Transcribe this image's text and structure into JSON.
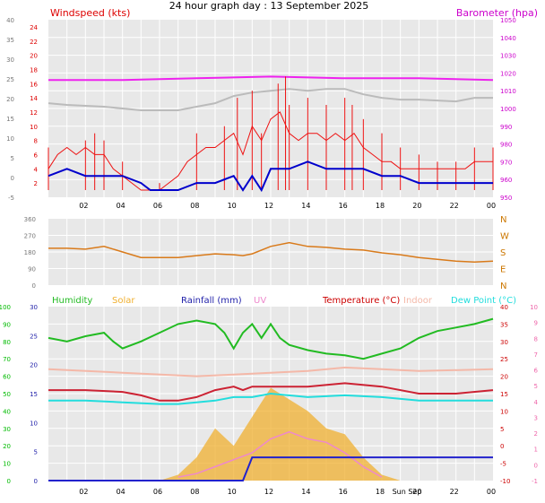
{
  "title": "24 hour graph day : 13 September 2025",
  "colors": {
    "bg_panel": "#e8e8e8",
    "grid": "#ffffff",
    "wind": "#ee1111",
    "gust_base": "#0000cc",
    "baro": "#ee22ee",
    "baro_avg": "#bbbbbb",
    "dir": "#d97a1a",
    "humidity": "#22bb22",
    "solar": "#f0b030",
    "rain": "#2222cc",
    "uv": "#ee88cc",
    "temp": "#cc2233",
    "indoor": "#f4b8a8",
    "dew": "#22dddd",
    "left_axis_1": "#dd0000",
    "right_axis_1": "#cc00cc",
    "axis_green": "#00bb00",
    "axis_blue": "#2222aa",
    "axis_red": "#cc0000",
    "axis_pink": "#ee66aa"
  },
  "time_ticks": [
    "02",
    "04",
    "06",
    "08",
    "10",
    "12",
    "14",
    "16",
    "18",
    "20",
    "22",
    "00"
  ],
  "panel3_time_ticks": [
    "02",
    "04",
    "06",
    "08",
    "10",
    "12",
    "14",
    "16",
    "18",
    "Sun Sep",
    "20",
    "22",
    "00"
  ],
  "chart_data": [
    {
      "type": "line",
      "title": "Windspeed (kts)",
      "right_title": "Barometer (hpa)",
      "x_unit": "hour",
      "xlim": [
        0,
        24
      ],
      "left_axis_ticks": [
        -5,
        0,
        5,
        10,
        15,
        20,
        25,
        30,
        35,
        40
      ],
      "inner_axis_ticks": [
        0,
        2,
        4,
        6,
        8,
        10,
        12,
        14,
        16,
        18,
        20,
        22,
        24
      ],
      "right_axis_ticks": [
        950,
        960,
        970,
        980,
        990,
        1000,
        1010,
        1020,
        1030,
        1040,
        1050
      ],
      "series": [
        {
          "name": "Windspeed",
          "x": [
            0,
            0.5,
            1,
            1.5,
            2,
            2.5,
            3,
            3.5,
            4,
            4.5,
            5,
            5.5,
            6,
            6.5,
            7,
            7.5,
            8,
            8.5,
            9,
            9.5,
            10,
            10.5,
            11,
            11.5,
            12,
            12.5,
            13,
            13.5,
            14,
            14.5,
            15,
            15.5,
            16,
            16.5,
            17,
            17.5,
            18,
            18.5,
            19,
            19.5,
            20,
            20.5,
            21,
            21.5,
            22,
            22.5,
            23,
            23.5,
            24
          ],
          "values": [
            3,
            5,
            6,
            5,
            6,
            5,
            5,
            3,
            2,
            1,
            0,
            0,
            0,
            1,
            2,
            4,
            5,
            6,
            6,
            7,
            8,
            5,
            9,
            7,
            10,
            11,
            8,
            7,
            8,
            8,
            7,
            8,
            7,
            8,
            6,
            5,
            4,
            4,
            3,
            3,
            3,
            3,
            3,
            3,
            3,
            3,
            4,
            4,
            4
          ]
        },
        {
          "name": "Wind peaks",
          "x": [
            0,
            2,
            2.5,
            3,
            4,
            6,
            8,
            9.5,
            10.2,
            11,
            11.5,
            12.4,
            12.8,
            13,
            14,
            15,
            16,
            16.4,
            17,
            18,
            19,
            20,
            21,
            22,
            23,
            24
          ],
          "values": [
            6,
            7,
            8,
            7,
            4,
            1,
            8,
            9,
            13,
            14,
            8,
            15,
            16,
            12,
            13,
            12,
            13,
            12,
            10,
            8,
            6,
            5,
            4,
            4,
            6,
            6
          ]
        },
        {
          "name": "Wind average",
          "x": [
            0,
            1,
            2,
            3,
            4,
            5,
            5.5,
            6,
            7,
            8,
            9,
            10,
            10.5,
            11,
            11.5,
            12,
            13,
            14,
            15,
            16,
            17,
            18,
            19,
            20,
            21,
            22,
            23,
            24
          ],
          "values": [
            2,
            3,
            2,
            2,
            2,
            1,
            0,
            -1,
            0,
            1,
            1,
            2,
            0,
            2,
            -1,
            3,
            3,
            4,
            3,
            3,
            3,
            2,
            2,
            1,
            1,
            1,
            1,
            1
          ]
        },
        {
          "name": "Barometer",
          "x": [
            0,
            4,
            8,
            12,
            16,
            20,
            24
          ],
          "values": [
            1016,
            1016,
            1017,
            1018,
            1017,
            1017,
            1016
          ]
        }
      ]
    },
    {
      "type": "scatter",
      "title": "Wind direction",
      "xlim": [
        0,
        24
      ],
      "left_axis_ticks": [
        0,
        90,
        180,
        270,
        360
      ],
      "right_axis_labels": [
        "N",
        "W",
        "S",
        "E",
        "N"
      ],
      "series": [
        {
          "name": "Direction",
          "x": [
            0,
            1,
            2,
            3,
            4,
            5,
            6,
            7,
            8,
            9,
            10,
            10.5,
            11,
            12,
            13,
            14,
            15,
            16,
            17,
            18,
            19,
            20,
            21,
            22,
            23,
            24
          ],
          "values": [
            200,
            200,
            195,
            210,
            180,
            150,
            150,
            150,
            160,
            170,
            165,
            160,
            170,
            210,
            230,
            210,
            205,
            195,
            190,
            175,
            165,
            150,
            140,
            130,
            125,
            130
          ]
        }
      ]
    },
    {
      "type": "line",
      "title": "Humidity / Solar / Rainfall (mm) / UV / Temperature (°C) / Indoor / Dew Point (°C)",
      "legend": [
        "Humidity",
        "Solar",
        "Rainfall (mm)",
        "UV",
        "Temperature (°C)",
        "Indoor",
        "Dew Point (°C)"
      ],
      "xlim": [
        0,
        24
      ],
      "left_axis_ticks": [
        0,
        10,
        20,
        30,
        40,
        50,
        60,
        70,
        80,
        90,
        100
      ],
      "inner_axis_ticks": [
        0,
        5,
        10,
        15,
        20,
        25,
        30
      ],
      "right_axis_ticks": [
        -10,
        -5,
        0,
        5,
        10,
        15,
        20,
        25,
        30,
        35,
        40
      ],
      "right_uv_ticks": [
        -1,
        0,
        1,
        2,
        3,
        4,
        5,
        6,
        7,
        8,
        9,
        10
      ],
      "series": [
        {
          "name": "Humidity",
          "x": [
            0,
            1,
            2,
            3,
            3.5,
            4,
            5,
            6,
            7,
            8,
            9,
            9.5,
            10,
            10.5,
            11,
            11.5,
            12,
            12.5,
            13,
            14,
            15,
            16,
            17,
            18,
            19,
            20,
            21,
            22,
            23,
            24
          ],
          "values": [
            82,
            80,
            83,
            85,
            80,
            76,
            80,
            85,
            90,
            92,
            90,
            85,
            76,
            85,
            90,
            82,
            90,
            82,
            78,
            75,
            73,
            72,
            70,
            73,
            76,
            82,
            86,
            88,
            90,
            93
          ]
        },
        {
          "name": "Temperature",
          "x": [
            0,
            2,
            4,
            5,
            6,
            7,
            8,
            9,
            10,
            10.5,
            11,
            12,
            14,
            16,
            18,
            20,
            22,
            24
          ],
          "values": [
            16,
            16,
            15.5,
            14.5,
            13,
            13,
            14,
            16,
            17,
            16,
            17,
            17,
            17,
            18,
            17,
            15,
            15,
            16
          ]
        },
        {
          "name": "Dew Point",
          "x": [
            0,
            2,
            4,
            6,
            7,
            8,
            9,
            10,
            11,
            12,
            14,
            16,
            18,
            20,
            22,
            24
          ],
          "values": [
            13,
            13,
            12.5,
            12,
            12,
            12.5,
            13,
            14,
            14,
            15,
            14,
            14.5,
            14,
            13,
            13,
            13
          ]
        },
        {
          "name": "Indoor",
          "x": [
            0,
            4,
            8,
            10,
            14,
            16,
            18,
            20,
            24
          ],
          "values": [
            22,
            21,
            20,
            20.5,
            21.5,
            22.5,
            22,
            21.5,
            22
          ]
        },
        {
          "name": "Solar",
          "x": [
            6,
            7,
            8,
            9,
            10,
            11,
            12,
            13,
            14,
            15,
            16,
            17,
            18,
            19
          ],
          "values": [
            0,
            1,
            4,
            9,
            6,
            11,
            16,
            14,
            12,
            9,
            8,
            4,
            1,
            0
          ]
        },
        {
          "name": "UV",
          "x": [
            7,
            8,
            9,
            10,
            11,
            12,
            13,
            14,
            15,
            16,
            17,
            18
          ],
          "values": [
            -9,
            -8,
            -6,
            -4,
            -2,
            2,
            4,
            2,
            1,
            -2,
            -6,
            -9
          ]
        },
        {
          "name": "Rainfall (mm)",
          "x": [
            0,
            10.5,
            11,
            24
          ],
          "values": [
            0,
            0,
            4,
            4
          ]
        }
      ]
    }
  ]
}
